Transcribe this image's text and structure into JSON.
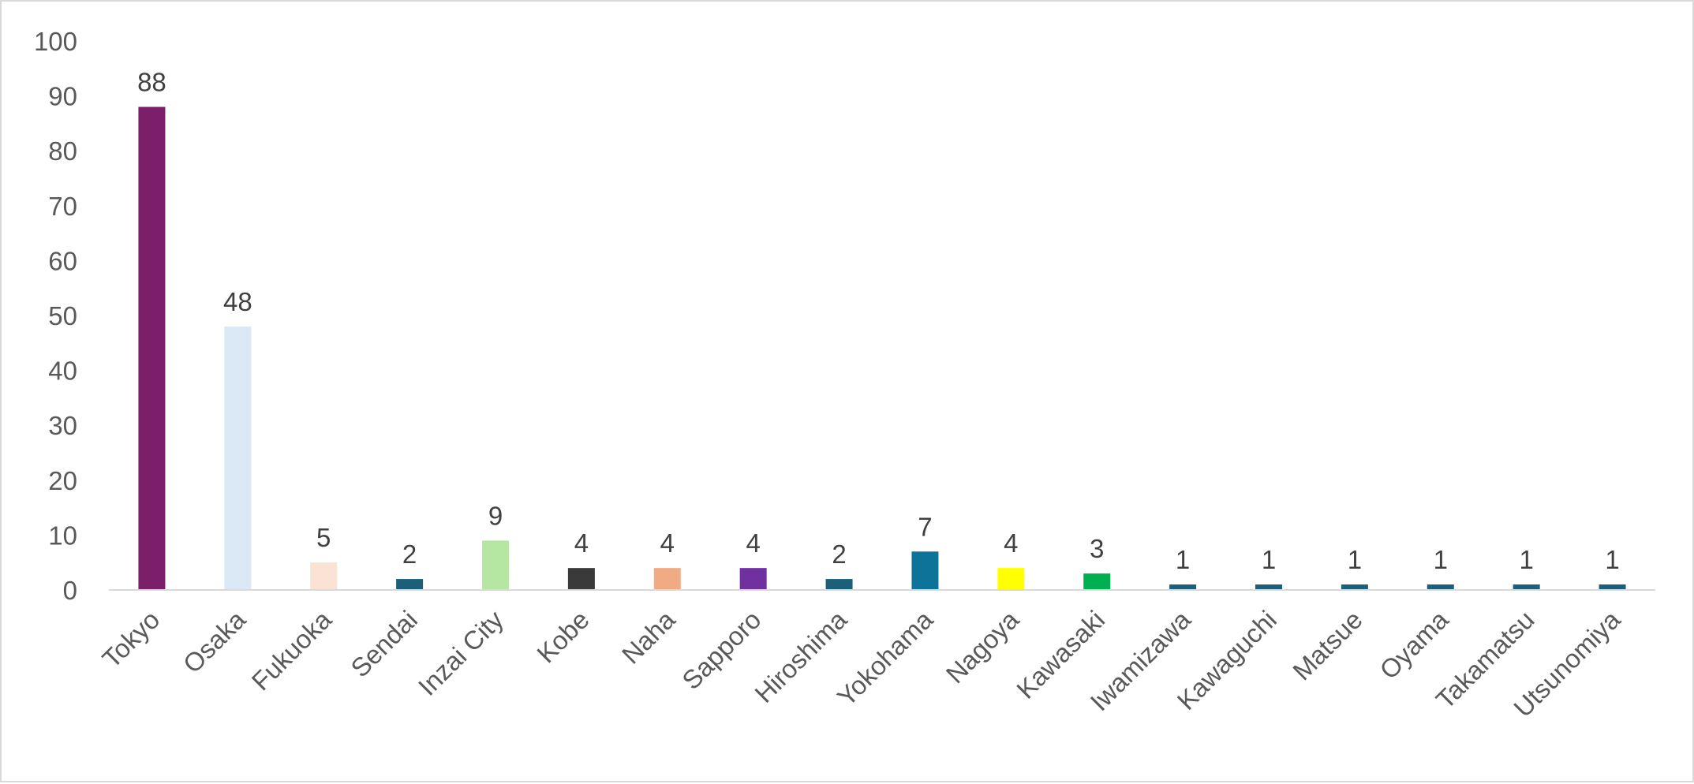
{
  "chart_data": {
    "type": "bar",
    "categories": [
      "Tokyo",
      "Osaka",
      "Fukuoka",
      "Sendai",
      "Inzai City",
      "Kobe",
      "Naha",
      "Sapporo",
      "Hiroshima",
      "Yokohama",
      "Nagoya",
      "Kawasaki",
      "Iwamizawa",
      "Kawaguchi",
      "Matsue",
      "Oyama",
      "Takamatsu",
      "Utsunomiya"
    ],
    "values": [
      88,
      48,
      5,
      2,
      9,
      4,
      4,
      4,
      2,
      7,
      4,
      3,
      1,
      1,
      1,
      1,
      1,
      1
    ],
    "colors": [
      "#7b1f6a",
      "#dbe8f5",
      "#fae3d5",
      "#1c5f7a",
      "#b5e6a2",
      "#3a3a3a",
      "#f0ab84",
      "#7030a0",
      "#1c5f7a",
      "#0e7399",
      "#ffff00",
      "#00b050",
      "#1c5f7a",
      "#1c5f7a",
      "#1c5f7a",
      "#1c5f7a",
      "#1c5f7a",
      "#1c5f7a"
    ],
    "ylim": [
      0,
      100
    ],
    "yticks": [
      0,
      10,
      20,
      30,
      40,
      50,
      60,
      70,
      80,
      90,
      100
    ],
    "data_labels": true,
    "grid": false,
    "legend": "none",
    "title": "",
    "xlabel": "",
    "ylabel": ""
  }
}
